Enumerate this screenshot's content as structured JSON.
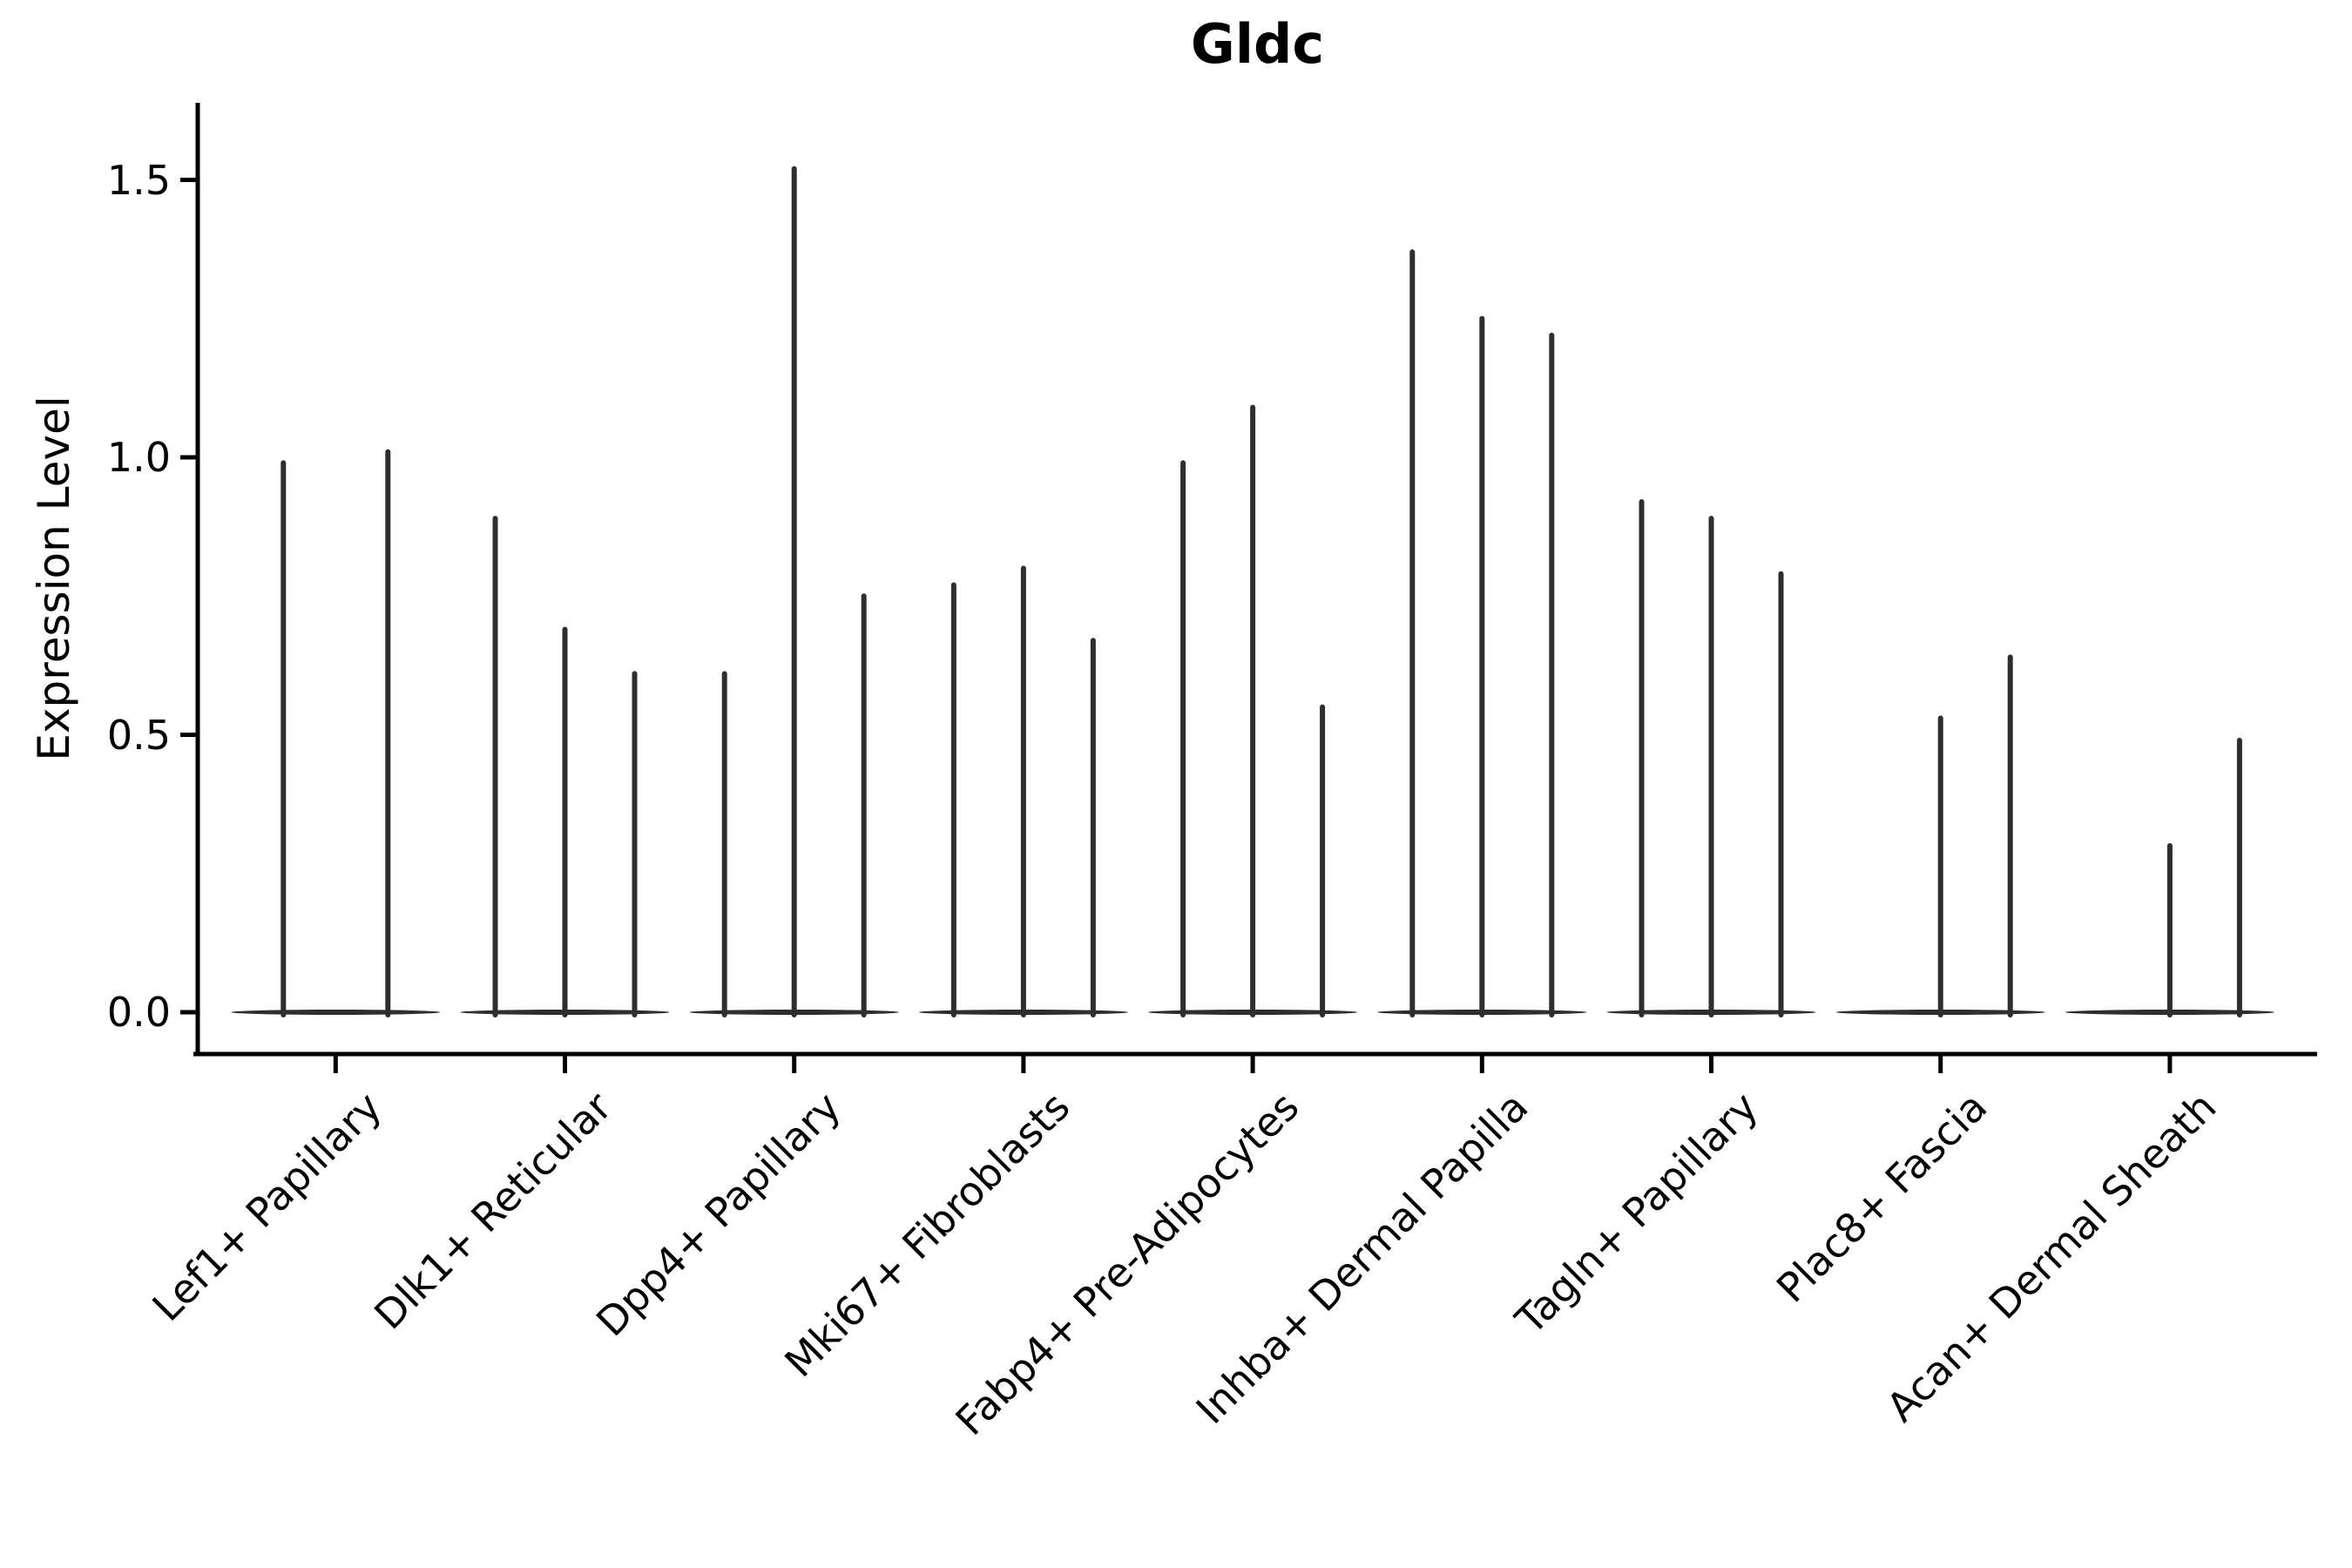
{
  "title": "Gldc",
  "ylabel": "Expression Level",
  "chart_data": {
    "type": "violin",
    "title": "Gldc",
    "xlabel": "",
    "ylabel": "Expression Level",
    "ylim": [
      0,
      1.64
    ],
    "yticks": [
      0.0,
      0.5,
      1.0,
      1.5
    ],
    "ytick_labels": [
      "0.0",
      "0.5",
      "1.0",
      "1.5"
    ],
    "x_rotation": 45,
    "grid": false,
    "legend": "none",
    "style_note": "spike-shaped violins: all density mass at 0 (flat horizontal base lens per group) with a thin vertical tail up to the max expression value",
    "categories": [
      "Lef1+ Papillary",
      "Dlk1+ Reticular",
      "Dpp4+ Papillary",
      "Mki67+ Fibroblasts",
      "Fabp4+ Pre-Adipocytes",
      "Inhba+ Dermal Papilla",
      "Tagln+ Papillary",
      "Plac8+ Fascia",
      "Acan+ Dermal Sheath"
    ],
    "groups": [
      {
        "category": "Lef1+ Papillary",
        "violin_max": [
          0.99,
          1.01
        ]
      },
      {
        "category": "Dlk1+ Reticular",
        "violin_max": [
          0.89,
          0.69,
          0.61
        ]
      },
      {
        "category": "Dpp4+ Papillary",
        "violin_max": [
          0.61,
          1.52,
          0.75
        ]
      },
      {
        "category": "Mki67+ Fibroblasts",
        "violin_max": [
          0.77,
          0.8,
          0.67
        ]
      },
      {
        "category": "Fabp4+ Pre-Adipocytes",
        "violin_max": [
          0.99,
          1.09,
          0.55
        ]
      },
      {
        "category": "Inhba+ Dermal Papilla",
        "violin_max": [
          1.37,
          1.25,
          1.22
        ]
      },
      {
        "category": "Tagln+ Papillary",
        "violin_max": [
          0.92,
          0.89,
          0.79
        ]
      },
      {
        "category": "Plac8+ Fascia",
        "violin_max": [
          0.0,
          0.53,
          0.64
        ]
      },
      {
        "category": "Acan+ Dermal Sheath",
        "violin_max": [
          0.0,
          0.3,
          0.49
        ]
      }
    ],
    "colors": {
      "violin_line": "#2e2e2e",
      "axis": "#000000",
      "text": "#000000",
      "background": "#ffffff"
    }
  }
}
